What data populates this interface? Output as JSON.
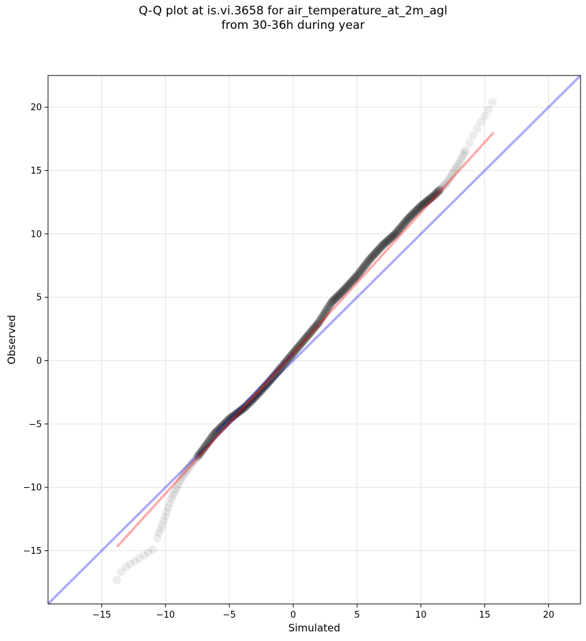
{
  "title_line1": "Q-Q plot at is.vi.3658 for air_temperature_at_2m_agl",
  "title_line2": "from 30-36h during year",
  "chart_data": {
    "type": "scatter",
    "title": "Q-Q plot at is.vi.3658 for air_temperature_at_2m_agl\nfrom 30-36h during year",
    "xlabel": "Simulated",
    "ylabel": "Observed",
    "xlim": [
      -19.2,
      22.5
    ],
    "ylim": [
      -19.2,
      22.5
    ],
    "xticks": [
      -15,
      -10,
      -5,
      0,
      5,
      10,
      15,
      20
    ],
    "yticks": [
      -15,
      -10,
      -5,
      0,
      5,
      10,
      15,
      20
    ],
    "xtick_labels": [
      "−15",
      "−10",
      "−5",
      "0",
      "5",
      "10",
      "15",
      "20"
    ],
    "ytick_labels": [
      "−15",
      "−10",
      "−5",
      "0",
      "5",
      "10",
      "15",
      "20"
    ],
    "grid": true,
    "colors": {
      "points": "#000000",
      "identity_line": "#0000ee",
      "fit_line": "#ff0000"
    },
    "identity_line": {
      "x": [
        -19.2,
        22.5
      ],
      "y": [
        -19.2,
        22.5
      ]
    },
    "fit_line": {
      "x": [
        -13.8,
        15.7
      ],
      "y": [
        -14.7,
        18.0
      ]
    },
    "quantile_curve": {
      "x": [
        -13.8,
        -13.3,
        -12.2,
        -11.0,
        -10.2,
        -9.5,
        -8.7,
        -8.0,
        -7.2,
        -6.2,
        -5.0,
        -3.8,
        -3.0,
        -2.0,
        -1.0,
        0.0,
        1.0,
        2.0,
        3.0,
        4.0,
        5.0,
        6.0,
        7.0,
        8.0,
        9.0,
        10.0,
        11.0,
        12.0,
        13.0,
        13.7,
        14.5,
        15.3,
        15.7
      ],
      "y": [
        -17.3,
        -16.4,
        -15.7,
        -14.9,
        -12.8,
        -10.8,
        -9.2,
        -8.2,
        -7.2,
        -5.8,
        -4.6,
        -3.7,
        -2.9,
        -1.8,
        -0.6,
        0.6,
        1.8,
        3.0,
        4.6,
        5.6,
        6.7,
        8.0,
        9.1,
        10.0,
        11.2,
        12.2,
        13.0,
        14.0,
        15.6,
        17.0,
        18.5,
        19.8,
        20.6
      ]
    }
  }
}
